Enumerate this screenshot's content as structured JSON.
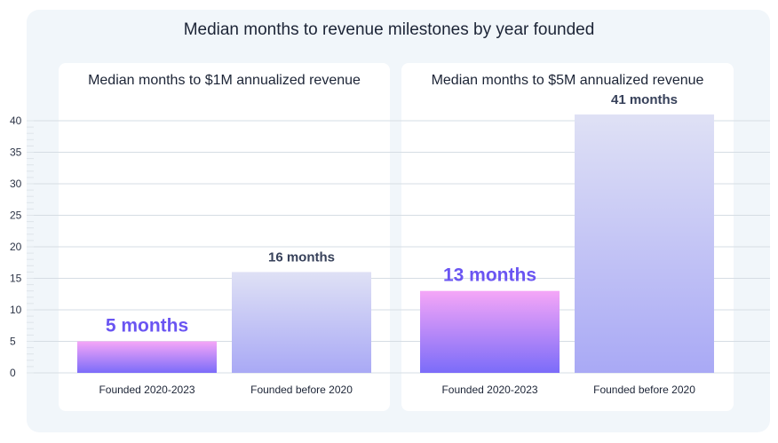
{
  "chart_data": {
    "type": "bar",
    "title": "Median months to revenue milestones by year founded",
    "y_ticks": [
      0,
      5,
      10,
      15,
      20,
      25,
      30,
      35,
      40
    ],
    "ylim": [
      0,
      40
    ],
    "grid": true,
    "colors": {
      "recent_top": "#f5a6f7",
      "recent_bottom": "#7b6cf9",
      "older_top": "#dfe1f5",
      "older_bottom": "#a9a9f5",
      "highlight_label": "#6a55f2",
      "plain_label": "#37415a",
      "grid": "#d6dde4",
      "tick_text": "#2c3446"
    },
    "panels": [
      {
        "title": "Median months to $1M annualized revenue",
        "categories": [
          "Founded 2020-2023",
          "Founded before 2020"
        ],
        "values": [
          5,
          16
        ],
        "labels": [
          "5 months",
          "16 months"
        ]
      },
      {
        "title": "Median months to $5M annualized revenue",
        "categories": [
          "Founded 2020-2023",
          "Founded before 2020"
        ],
        "values": [
          13,
          41
        ],
        "labels": [
          "13 months",
          "41 months"
        ]
      }
    ]
  }
}
